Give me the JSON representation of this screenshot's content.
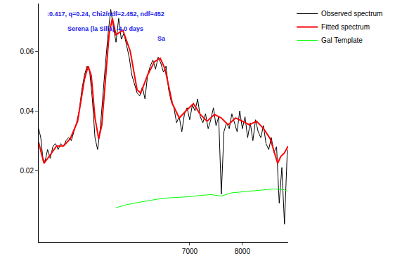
{
  "chart_data": {
    "type": "line",
    "annotations": [
      {
        "text": ":0.417, q=0.24, Chi2/ndf=2.452, ndf=452",
        "x": 5400,
        "y": 0.0725
      },
      {
        "text": "Serena (la Silla) -4.0 days",
        "x": 5400,
        "y": 0.0675
      },
      {
        "text": "Sa",
        "x": 6470,
        "y": 0.0642
      }
    ],
    "series": [
      {
        "name": "Observed spectrum",
        "color": "#000000",
        "x": [
          4130,
          4170,
          4210,
          4250,
          4300,
          4350,
          4400,
          4450,
          4500,
          4550,
          4600,
          4650,
          4700,
          4750,
          4800,
          4850,
          4900,
          4950,
          5000,
          5050,
          5100,
          5150,
          5200,
          5250,
          5300,
          5350,
          5400,
          5450,
          5500,
          5550,
          5600,
          5650,
          5700,
          5750,
          5800,
          5850,
          5900,
          5950,
          6000,
          6050,
          6100,
          6150,
          6200,
          6250,
          6300,
          6350,
          6400,
          6450,
          6500,
          6550,
          6600,
          6650,
          6700,
          6750,
          6800,
          6850,
          6900,
          6950,
          7000,
          7050,
          7100,
          7150,
          7200,
          7250,
          7300,
          7350,
          7400,
          7450,
          7500,
          7550,
          7600,
          7650,
          7700,
          7750,
          7800,
          7850,
          7900,
          7950,
          8000,
          8050,
          8100,
          8150,
          8200,
          8250,
          8300,
          8350,
          8400,
          8450,
          8500,
          8550,
          8600,
          8650,
          8700,
          8750,
          8800,
          8850,
          8870
        ],
        "values": [
          0.034,
          0.031,
          0.024,
          0.023,
          0.027,
          0.024,
          0.028,
          0.029,
          0.027,
          0.029,
          0.028,
          0.03,
          0.031,
          0.03,
          0.033,
          0.036,
          0.04,
          0.047,
          0.052,
          0.055,
          0.053,
          0.044,
          0.031,
          0.027,
          0.034,
          0.046,
          0.056,
          0.066,
          0.074,
          0.068,
          0.063,
          0.071,
          0.064,
          0.066,
          0.062,
          0.058,
          0.052,
          0.049,
          0.046,
          0.045,
          0.048,
          0.044,
          0.052,
          0.055,
          0.057,
          0.054,
          0.058,
          0.056,
          0.053,
          0.055,
          0.047,
          0.043,
          0.041,
          0.036,
          0.038,
          0.033,
          0.039,
          0.041,
          0.037,
          0.042,
          0.04,
          0.044,
          0.038,
          0.036,
          0.039,
          0.034,
          0.037,
          0.041,
          0.035,
          0.038,
          0.012,
          0.033,
          0.036,
          0.034,
          0.039,
          0.036,
          0.033,
          0.04,
          0.034,
          0.038,
          0.031,
          0.036,
          0.03,
          0.037,
          0.033,
          0.031,
          0.035,
          0.029,
          0.027,
          0.031,
          0.026,
          0.028,
          0.009,
          0.021,
          0.002,
          0.025,
          0.027
        ]
      },
      {
        "name": "Fitted spectrum",
        "color": "#ff0000",
        "x": [
          4130,
          4230,
          4330,
          4470,
          4600,
          4730,
          4870,
          5000,
          5070,
          5130,
          5200,
          5270,
          5330,
          5400,
          5470,
          5530,
          5600,
          5730,
          5870,
          6000,
          6070,
          6200,
          6330,
          6440,
          6530,
          6670,
          6800,
          6930,
          7070,
          7200,
          7330,
          7470,
          7600,
          7730,
          7870,
          8000,
          8130,
          8270,
          8400,
          8530,
          8670,
          8730,
          8800,
          8870
        ],
        "values": [
          0.0294,
          0.0224,
          0.0247,
          0.0282,
          0.0282,
          0.0306,
          0.0365,
          0.0506,
          0.055,
          0.0518,
          0.0376,
          0.0306,
          0.0353,
          0.0518,
          0.066,
          0.071,
          0.0655,
          0.067,
          0.06,
          0.047,
          0.046,
          0.052,
          0.0565,
          0.0576,
          0.0541,
          0.0424,
          0.0376,
          0.04,
          0.0424,
          0.0388,
          0.0365,
          0.0388,
          0.0376,
          0.0353,
          0.0376,
          0.0365,
          0.0353,
          0.0365,
          0.0341,
          0.0306,
          0.0224,
          0.0247,
          0.0259,
          0.0282
        ]
      },
      {
        "name": "Gal Template",
        "color": "#00ff00",
        "x": [
          5600,
          5800,
          6000,
          6200,
          6400,
          6600,
          6800,
          7000,
          7200,
          7400,
          7600,
          7800,
          8000,
          8200,
          8400,
          8600,
          8700,
          8800,
          8850
        ],
        "values": [
          0.0075,
          0.0085,
          0.0092,
          0.0098,
          0.0104,
          0.0108,
          0.011,
          0.0112,
          0.0116,
          0.0119,
          0.0114,
          0.0125,
          0.0128,
          0.0131,
          0.0134,
          0.0138,
          0.0137,
          0.0135,
          0.013
        ]
      }
    ],
    "xlim": [
      4130,
      8870
    ],
    "xticks": [
      7000,
      8000
    ],
    "ylim": [
      -0.004,
      0.076
    ],
    "yticks": [
      0.02,
      0.04,
      0.06
    ],
    "grid": false,
    "legend": "top right"
  }
}
